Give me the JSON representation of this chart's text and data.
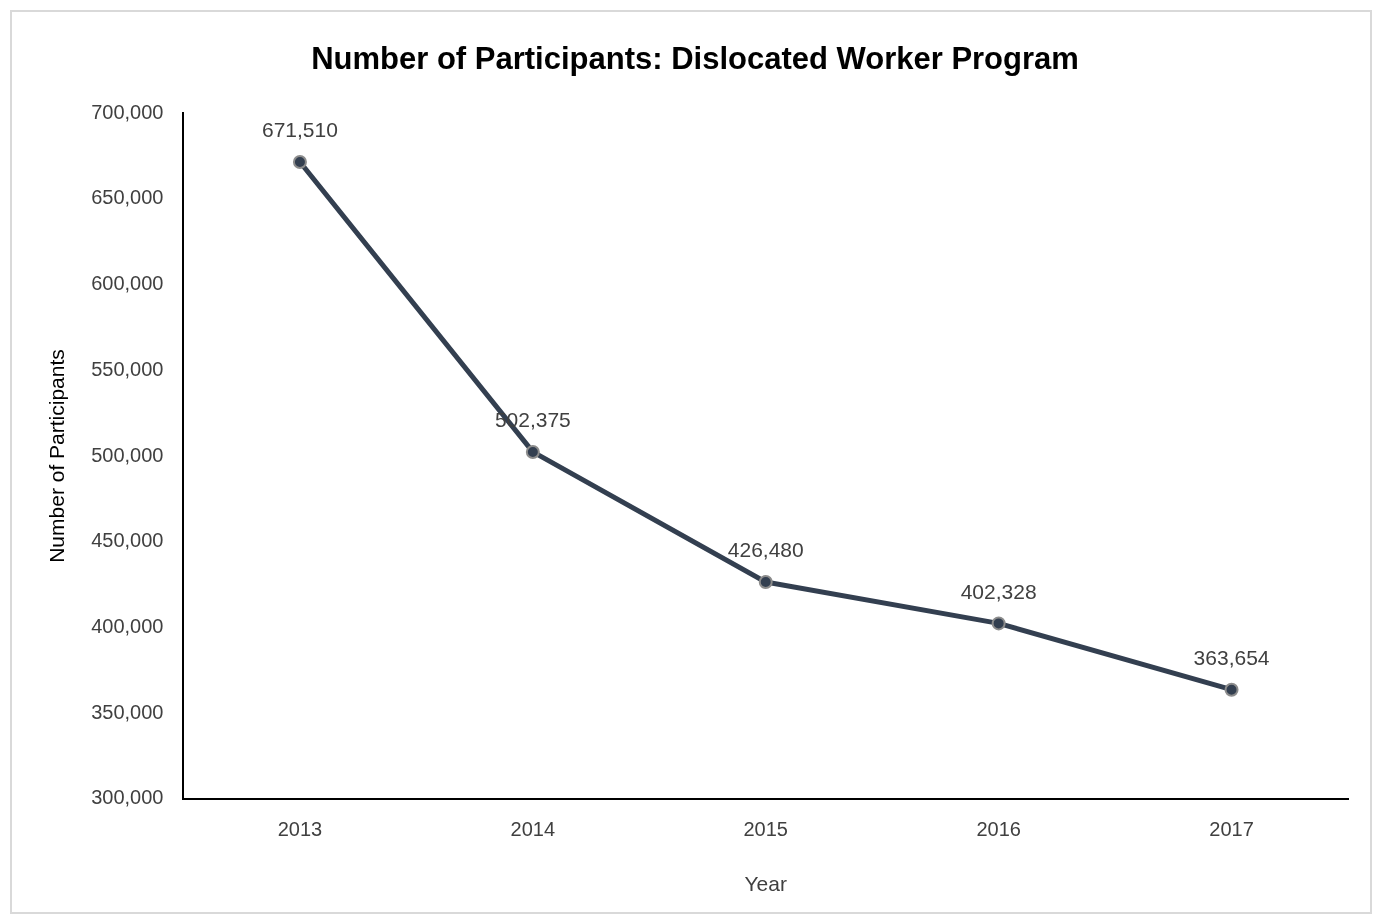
{
  "chart_data": {
    "type": "line",
    "title": "Number of Participants: Dislocated Worker Program",
    "xlabel": "Year",
    "ylabel": "Number of Participants",
    "categories": [
      "2013",
      "2014",
      "2015",
      "2016",
      "2017"
    ],
    "series": [
      {
        "color": "#333f50",
        "values": [
          671510,
          502375,
          426480,
          402328,
          363654
        ],
        "value_labels": [
          "671,510",
          "502,375",
          "426,480",
          "402,328",
          "363,654"
        ]
      }
    ],
    "ylim": [
      300000,
      700000
    ],
    "yticks": [
      {
        "value": 300000,
        "label": "300,000"
      },
      {
        "value": 350000,
        "label": "350,000"
      },
      {
        "value": 400000,
        "label": "400,000"
      },
      {
        "value": 450000,
        "label": "450,000"
      },
      {
        "value": 500000,
        "label": "500,000"
      },
      {
        "value": 550000,
        "label": "550,000"
      },
      {
        "value": 600000,
        "label": "600,000"
      },
      {
        "value": 650000,
        "label": "650,000"
      },
      {
        "value": 700000,
        "label": "700,000"
      }
    ],
    "grid": false,
    "legend": false,
    "marker": "circle",
    "line_style": "solid"
  }
}
